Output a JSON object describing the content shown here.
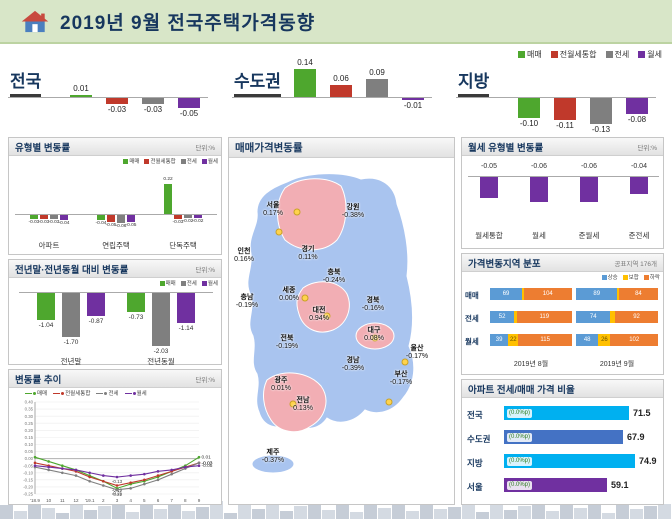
{
  "header": {
    "title": "2019년 9월 전국주택가격동향"
  },
  "colors": {
    "매매": "#4ea72e",
    "전월세통합": "#c0392b",
    "전세": "#7f7f7f",
    "월세": "#7030a0",
    "상승": "#5b9bd5",
    "보합": "#ffc000",
    "하락": "#ed7d31",
    "map_up": "#f2aeb4",
    "map_down": "#a9c4ef",
    "ratio_bars": [
      "#00b0f0",
      "#4472c4",
      "#00b0f0",
      "#7030a0"
    ]
  },
  "chart_data": [
    {
      "name": "regional_summary",
      "type": "bar",
      "series_labels": [
        "매매",
        "전월세통합",
        "전세",
        "월세"
      ],
      "groups": [
        {
          "label": "전국",
          "values": [
            0.01,
            -0.03,
            -0.03,
            -0.05
          ]
        },
        {
          "label": "수도권",
          "values": [
            0.14,
            0.06,
            0.09,
            -0.01
          ]
        },
        {
          "label": "지방",
          "values": [
            -0.1,
            -0.11,
            -0.13,
            -0.08
          ]
        }
      ]
    },
    {
      "name": "type_change",
      "type": "bar",
      "title": "유형별 변동률",
      "unit": "단위:%",
      "legend": [
        "매매",
        "전월세통합",
        "전세",
        "월세"
      ],
      "categories": [
        "아파트",
        "연립주택",
        "단독주택"
      ],
      "series": [
        {
          "name": "매매",
          "values": [
            -0.03,
            -0.04,
            0.22
          ]
        },
        {
          "name": "전월세통합",
          "values": [
            -0.03,
            -0.05,
            -0.03
          ]
        },
        {
          "name": "전세",
          "values": [
            -0.03,
            -0.06,
            -0.02
          ]
        },
        {
          "name": "월세",
          "values": [
            -0.04,
            -0.05,
            -0.02
          ]
        }
      ]
    },
    {
      "name": "yoy_change",
      "type": "bar",
      "title": "전년말·전년동월 대비 변동률",
      "unit": "단위:%",
      "legend": [
        "매매",
        "전세",
        "월세"
      ],
      "categories": [
        "전년말",
        "전년동월"
      ],
      "series": [
        {
          "name": "매매",
          "values": [
            -1.04,
            -0.73
          ]
        },
        {
          "name": "전세",
          "values": [
            -1.7,
            -2.03
          ]
        },
        {
          "name": "월세",
          "values": [
            -0.87,
            -1.14
          ]
        }
      ]
    },
    {
      "name": "trend",
      "type": "line",
      "title": "변동률 추이",
      "unit": "단위:%",
      "x": [
        "'18.9",
        "10",
        "11",
        "12",
        "'19.1",
        "2",
        "3",
        "4",
        "5",
        "6",
        "7",
        "8",
        "9"
      ],
      "ylim": [
        -0.25,
        0.4
      ],
      "series": [
        {
          "name": "매매",
          "values": [
            0.01,
            -0.02,
            -0.05,
            -0.08,
            -0.12,
            -0.16,
            -0.21,
            -0.18,
            -0.16,
            -0.13,
            -0.09,
            -0.05,
            0.01
          ]
        },
        {
          "name": "전월세통합",
          "values": [
            -0.03,
            -0.05,
            -0.07,
            -0.09,
            -0.13,
            -0.16,
            -0.19,
            -0.17,
            -0.15,
            -0.12,
            -0.09,
            -0.06,
            -0.03
          ]
        },
        {
          "name": "전세",
          "values": [
            -0.06,
            -0.08,
            -0.1,
            -0.12,
            -0.16,
            -0.19,
            -0.22,
            -0.21,
            -0.18,
            -0.15,
            -0.11,
            -0.07,
            -0.03
          ]
        },
        {
          "name": "월세",
          "values": [
            -0.05,
            -0.06,
            -0.07,
            -0.08,
            -0.1,
            -0.12,
            -0.13,
            -0.12,
            -0.11,
            -0.09,
            -0.08,
            -0.06,
            -0.05
          ]
        }
      ]
    },
    {
      "name": "sale_price_map",
      "type": "map",
      "title": "매매가격변동률",
      "regions": [
        {
          "name": "서울",
          "value": "0.17%",
          "trend": "up"
        },
        {
          "name": "강원",
          "value": "-0.38%",
          "trend": "down"
        },
        {
          "name": "인천",
          "value": "0.16%",
          "trend": "up"
        },
        {
          "name": "경기",
          "value": "0.11%",
          "trend": "up"
        },
        {
          "name": "충북",
          "value": "-0.24%",
          "trend": "down"
        },
        {
          "name": "세종",
          "value": "0.00%",
          "trend": "flat"
        },
        {
          "name": "충남",
          "value": "-0.19%",
          "trend": "down"
        },
        {
          "name": "대전",
          "value": "0.94%",
          "trend": "up"
        },
        {
          "name": "경북",
          "value": "-0.16%",
          "trend": "down"
        },
        {
          "name": "전북",
          "value": "-0.19%",
          "trend": "down"
        },
        {
          "name": "대구",
          "value": "0.08%",
          "trend": "up"
        },
        {
          "name": "경남",
          "value": "-0.39%",
          "trend": "down"
        },
        {
          "name": "울산",
          "value": "-0.17%",
          "trend": "down"
        },
        {
          "name": "광주",
          "value": "0.01%",
          "trend": "up"
        },
        {
          "name": "전남",
          "value": "0.13%",
          "trend": "up"
        },
        {
          "name": "부산",
          "value": "-0.17%",
          "trend": "down"
        },
        {
          "name": "제주",
          "value": "-0.37%",
          "trend": "down"
        }
      ]
    },
    {
      "name": "rent_type",
      "type": "bar",
      "title": "월세 유형별 변동률",
      "unit": "단위:%",
      "categories": [
        "월세통합",
        "월세",
        "준월세",
        "준전세"
      ],
      "values": [
        -0.05,
        -0.06,
        -0.06,
        -0.04
      ]
    },
    {
      "name": "region_distribution",
      "type": "stacked-bar",
      "title": "가격변동지역 분포",
      "subtitle": "공표지역 176개",
      "legend": [
        "상승",
        "보합",
        "하락"
      ],
      "period_labels": [
        "2019년 8월",
        "2019년 9월"
      ],
      "rows": [
        {
          "label": "매매",
          "aug": [
            69,
            3,
            104
          ],
          "sep": [
            89,
            3,
            84
          ]
        },
        {
          "label": "전세",
          "aug": [
            52,
            5,
            119
          ],
          "sep": [
            74,
            10,
            92
          ]
        },
        {
          "label": "월세",
          "aug": [
            39,
            22,
            115
          ],
          "sep": [
            48,
            26,
            102
          ]
        }
      ]
    },
    {
      "name": "jeonse_sale_ratio",
      "type": "bar",
      "title": "아파트 전세/매매 가격 비율",
      "rows": [
        {
          "label": "전국",
          "change": "(0.0%p)",
          "value": 71.5
        },
        {
          "label": "수도권",
          "change": "(0.0%p)",
          "value": 67.9
        },
        {
          "label": "지방",
          "change": "(0.0%p)",
          "value": 74.9
        },
        {
          "label": "서울",
          "change": "(0.0%p)",
          "value": 59.1
        }
      ]
    }
  ]
}
